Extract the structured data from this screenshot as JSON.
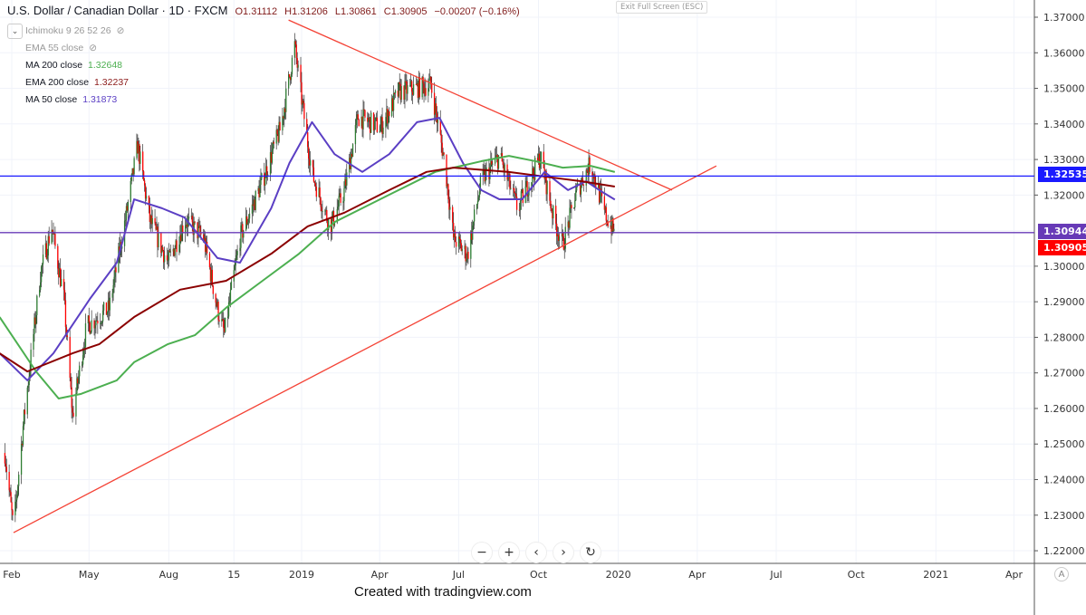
{
  "header": {
    "symbol": "U.S. Dollar / Canadian Dollar · 1D · FXCM",
    "open": "O1.31112",
    "high": "H1.31206",
    "low": "L1.30861",
    "close": "C1.30905",
    "change": "−0.00207 (−0.16%)",
    "exit_fullscreen": "Exit Full Screen (ESC)"
  },
  "indicators": [
    {
      "label": "Ichimoku 9 26 52 26",
      "value": "",
      "hidden": true,
      "color": "#999999"
    },
    {
      "label": "EMA 55 close",
      "value": "",
      "hidden": true,
      "color": "#999999"
    },
    {
      "label": "MA 200 close",
      "value": "1.32648",
      "color": "#4caf50"
    },
    {
      "label": "EMA 200 close",
      "value": "1.32237",
      "color": "#8b1a1a"
    },
    {
      "label": "MA 50 close",
      "value": "1.31873",
      "color": "#5b3fc4"
    }
  ],
  "price_labels": {
    "blue_line": "1.32535",
    "purple_line": "1.30944",
    "last": "1.30905"
  },
  "colors": {
    "up": "#2e7d32",
    "down": "#ff0000",
    "ma200": "#4caf50",
    "ema200": "#8b0000",
    "ma50": "#5b3fc4",
    "trend": "#f44336",
    "hline_blue": "#1a1aff",
    "hline_purple": "#673ab7"
  },
  "nav": {
    "zoom_out": "−",
    "zoom_in": "+",
    "back": "‹",
    "forward": "›",
    "reset": "↻"
  },
  "auto_label": "A",
  "credit": "Created with tradingview.com",
  "chart_data": {
    "type": "candlestick",
    "ylim": [
      1.215,
      1.375
    ],
    "y_ticks": [
      "1.37000",
      "1.36000",
      "1.35000",
      "1.34000",
      "1.33000",
      "1.32000",
      "1.30000",
      "1.29000",
      "1.28000",
      "1.27000",
      "1.26000",
      "1.25000",
      "1.24000",
      "1.23000",
      "1.22000"
    ],
    "x_ticks": [
      {
        "label": "Feb",
        "date": "2018-02-01"
      },
      {
        "label": "May",
        "date": "2018-05-01"
      },
      {
        "label": "Aug",
        "date": "2018-08-01"
      },
      {
        "label": "15",
        "date": "2018-10-15"
      },
      {
        "label": "2019",
        "date": "2019-01-01"
      },
      {
        "label": "Apr",
        "date": "2019-04-01"
      },
      {
        "label": "Jul",
        "date": "2019-07-01"
      },
      {
        "label": "Oct",
        "date": "2019-10-01"
      },
      {
        "label": "2020",
        "date": "2020-01-01"
      },
      {
        "label": "Apr",
        "date": "2020-04-01"
      },
      {
        "label": "Jul",
        "date": "2020-07-01"
      },
      {
        "label": "Oct",
        "date": "2020-10-01"
      },
      {
        "label": "2021",
        "date": "2021-01-01"
      },
      {
        "label": "Apr",
        "date": "2021-04-01"
      }
    ],
    "close_path": [
      [
        "2018-01-24",
        1.2475
      ],
      [
        "2018-02-03",
        1.226
      ],
      [
        "2018-02-14",
        1.255
      ],
      [
        "2018-03-06",
        1.298
      ],
      [
        "2018-03-19",
        1.311
      ],
      [
        "2018-04-02",
        1.291
      ],
      [
        "2018-04-12",
        1.258
      ],
      [
        "2018-04-28",
        1.283
      ],
      [
        "2018-05-24",
        1.288
      ],
      [
        "2018-06-14",
        1.316
      ],
      [
        "2018-06-26",
        1.334
      ],
      [
        "2018-07-10",
        1.313
      ],
      [
        "2018-07-31",
        1.301
      ],
      [
        "2018-08-20",
        1.313
      ],
      [
        "2018-09-10",
        1.308
      ],
      [
        "2018-09-26",
        1.288
      ],
      [
        "2018-10-04",
        1.281
      ],
      [
        "2018-10-22",
        1.308
      ],
      [
        "2018-11-17",
        1.324
      ],
      [
        "2018-12-08",
        1.339
      ],
      [
        "2018-12-24",
        1.362
      ],
      [
        "2019-01-01",
        1.347
      ],
      [
        "2019-01-13",
        1.326
      ],
      [
        "2019-02-03",
        1.311
      ],
      [
        "2019-02-19",
        1.321
      ],
      [
        "2019-03-07",
        1.342
      ],
      [
        "2019-04-02",
        1.339
      ],
      [
        "2019-04-23",
        1.349
      ],
      [
        "2019-05-30",
        1.351
      ],
      [
        "2019-06-15",
        1.329
      ],
      [
        "2019-06-25",
        1.308
      ],
      [
        "2019-07-11",
        1.303
      ],
      [
        "2019-07-27",
        1.324
      ],
      [
        "2019-08-17",
        1.331
      ],
      [
        "2019-09-07",
        1.316
      ],
      [
        "2019-10-03",
        1.331
      ],
      [
        "2019-10-19",
        1.313
      ],
      [
        "2019-10-29",
        1.306
      ],
      [
        "2019-11-14",
        1.321
      ],
      [
        "2019-11-30",
        1.329
      ],
      [
        "2019-12-16",
        1.315
      ],
      [
        "2019-12-28",
        1.30905
      ]
    ],
    "series": [
      {
        "name": "MA 50 close",
        "color": "#5b3fc4",
        "points": [
          [
            "2018-01-18",
            1.2755
          ],
          [
            "2018-02-19",
            1.2679
          ],
          [
            "2018-03-21",
            1.2755
          ],
          [
            "2018-05-02",
            1.2908
          ],
          [
            "2018-06-02",
            1.301
          ],
          [
            "2018-06-22",
            1.3188
          ],
          [
            "2018-07-24",
            1.3163
          ],
          [
            "2018-08-19",
            1.3137
          ],
          [
            "2018-09-26",
            1.3023
          ],
          [
            "2018-10-22",
            1.301
          ],
          [
            "2018-11-27",
            1.3163
          ],
          [
            "2018-12-18",
            1.329
          ],
          [
            "2019-01-13",
            1.3405
          ],
          [
            "2019-02-08",
            1.3315
          ],
          [
            "2019-03-12",
            1.3265
          ],
          [
            "2019-04-12",
            1.3315
          ],
          [
            "2019-05-14",
            1.3405
          ],
          [
            "2019-06-09",
            1.3417
          ],
          [
            "2019-07-06",
            1.329
          ],
          [
            "2019-07-27",
            1.3214
          ],
          [
            "2019-08-17",
            1.3188
          ],
          [
            "2019-09-12",
            1.3188
          ],
          [
            "2019-10-08",
            1.3265
          ],
          [
            "2019-11-04",
            1.3214
          ],
          [
            "2019-11-25",
            1.3239
          ],
          [
            "2019-12-10",
            1.3214
          ],
          [
            "2019-12-28",
            1.31873
          ]
        ]
      },
      {
        "name": "MA 200 close",
        "color": "#4caf50",
        "points": [
          [
            "2018-01-18",
            1.2857
          ],
          [
            "2018-03-01",
            1.2704
          ],
          [
            "2018-03-27",
            1.2628
          ],
          [
            "2018-04-22",
            1.2641
          ],
          [
            "2018-06-02",
            1.2679
          ],
          [
            "2018-06-22",
            1.273
          ],
          [
            "2018-07-31",
            1.2781
          ],
          [
            "2018-08-31",
            1.2806
          ],
          [
            "2018-10-06",
            1.2883
          ],
          [
            "2018-11-17",
            1.2959
          ],
          [
            "2018-12-29",
            1.3035
          ],
          [
            "2019-02-08",
            1.3124
          ],
          [
            "2019-04-12",
            1.3201
          ],
          [
            "2019-06-04",
            1.3265
          ],
          [
            "2019-07-27",
            1.3295
          ],
          [
            "2019-08-28",
            1.331
          ],
          [
            "2019-09-28",
            1.3295
          ],
          [
            "2019-10-29",
            1.3277
          ],
          [
            "2019-11-30",
            1.3282
          ],
          [
            "2019-12-28",
            1.32648
          ]
        ]
      },
      {
        "name": "EMA 200 close",
        "color": "#8b0000",
        "points": [
          [
            "2018-01-18",
            1.2755
          ],
          [
            "2018-02-19",
            1.2704
          ],
          [
            "2018-04-12",
            1.2755
          ],
          [
            "2018-05-13",
            1.2781
          ],
          [
            "2018-06-22",
            1.2857
          ],
          [
            "2018-08-14",
            1.2934
          ],
          [
            "2018-10-06",
            1.2959
          ],
          [
            "2018-11-27",
            1.3035
          ],
          [
            "2019-01-08",
            1.3112
          ],
          [
            "2019-02-19",
            1.315
          ],
          [
            "2019-04-12",
            1.3214
          ],
          [
            "2019-05-25",
            1.3265
          ],
          [
            "2019-06-25",
            1.3277
          ],
          [
            "2019-08-28",
            1.3265
          ],
          [
            "2019-10-08",
            1.3252
          ],
          [
            "2019-11-19",
            1.3239
          ],
          [
            "2019-12-28",
            1.32237
          ]
        ]
      }
    ],
    "trendlines": [
      {
        "from": [
          "2018-12-17",
          1.3692
        ],
        "to": [
          "2020-03-03",
          1.3214
        ]
      },
      {
        "from": [
          "2018-02-03",
          1.2251
        ],
        "to": [
          "2020-04-23",
          1.3282
        ]
      }
    ],
    "horizontal_lines": [
      1.32535,
      1.30944
    ]
  }
}
